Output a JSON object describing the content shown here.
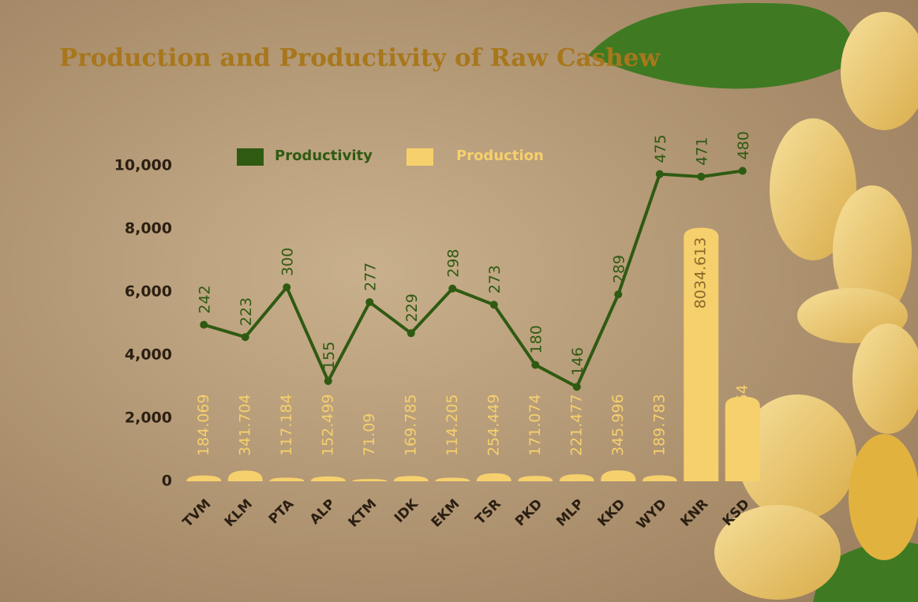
{
  "chart_data": {
    "type": "bar",
    "title": "Production and Productivity of Raw Cashew",
    "categories": [
      "TVM",
      "KLM",
      "PTA",
      "ALP",
      "KTM",
      "IDK",
      "EKM",
      "TSR",
      "PKD",
      "MLP",
      "KKD",
      "WYD",
      "KNR",
      "KSD"
    ],
    "series": [
      {
        "name": "Productivity",
        "type": "line",
        "axis": "y2",
        "color": "#2f5a12",
        "values": [
          242,
          223,
          300,
          155,
          277,
          229,
          298,
          273,
          180,
          146,
          289,
          475,
          471,
          480
        ]
      },
      {
        "name": "Production",
        "type": "bar",
        "color": "#f6d06c",
        "values": [
          184.069,
          341.704,
          117.184,
          152.499,
          71.09,
          169.785,
          114.205,
          254.449,
          171.074,
          221.477,
          345.996,
          189.783,
          8034.613,
          2683.864
        ]
      }
    ],
    "ylim": [
      0,
      10000
    ],
    "yticks": [
      0,
      {
        "value": 2000,
        "label": "2,000"
      },
      {
        "value": 4000,
        "label": "4,000"
      },
      {
        "value": 6000,
        "label": "6,000"
      },
      {
        "value": 8000,
        "label": "8,000"
      },
      {
        "value": 10000,
        "label": "10,000"
      }
    ],
    "y2lim": [
      0,
      488
    ]
  }
}
